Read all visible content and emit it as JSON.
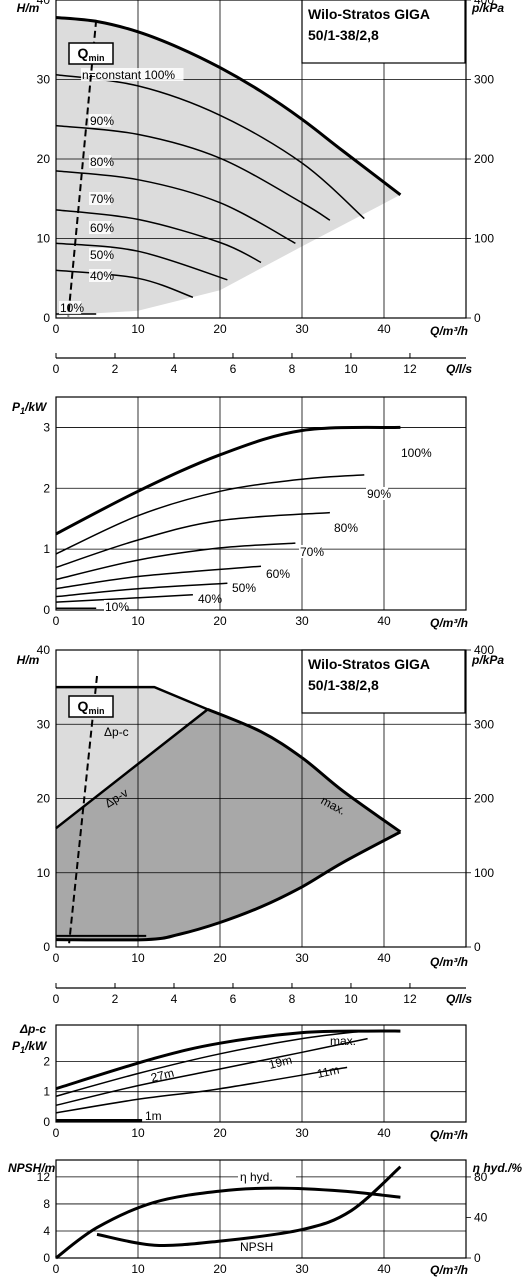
{
  "chart_data": [
    {
      "type": "line",
      "title": "Wilo-Stratos GIGA",
      "subtitle": "50/1-38/2,8",
      "ylabel": "H/m",
      "y2label": "p/kPa",
      "xlabel": "Q/m³/h",
      "x2label": "Q/l/s",
      "xlim": [
        0,
        50
      ],
      "ylim": [
        0,
        40
      ],
      "y2lim": [
        0,
        400
      ],
      "xticks": [
        0,
        10,
        20,
        30,
        40
      ],
      "yticks": [
        0,
        10,
        20,
        30,
        40
      ],
      "y2ticks": [
        0,
        100,
        200,
        300,
        400
      ],
      "x2lim": [
        0,
        13.9
      ],
      "x2ticks": [
        0,
        2,
        4,
        6,
        8,
        10,
        12
      ],
      "qmin_label": "Q",
      "qmin_sub": "min",
      "series": [
        {
          "name": "n=constant 100%",
          "x": [
            0,
            5,
            10,
            15,
            20,
            25,
            30,
            35,
            42
          ],
          "y": [
            37.8,
            37.3,
            36,
            34,
            31.5,
            28.5,
            25,
            21,
            15.5
          ]
        },
        {
          "name": "90%",
          "x": [
            0,
            10,
            20,
            30,
            37.6
          ],
          "y": [
            30.6,
            29.2,
            25.5,
            19.5,
            12.5
          ]
        },
        {
          "name": "80%",
          "x": [
            0,
            10,
            20,
            30,
            33.4
          ],
          "y": [
            24.2,
            23.1,
            20.1,
            14.5,
            12.3
          ]
        },
        {
          "name": "70%",
          "x": [
            0,
            10,
            20,
            29.2
          ],
          "y": [
            18.5,
            17.4,
            14.5,
            9.4
          ]
        },
        {
          "name": "60%",
          "x": [
            0,
            10,
            20,
            25
          ],
          "y": [
            13.6,
            12.4,
            9.5,
            7.0
          ]
        },
        {
          "name": "50%",
          "x": [
            0,
            10,
            20.9
          ],
          "y": [
            9.4,
            8.4,
            4.8
          ]
        },
        {
          "name": "40%",
          "x": [
            0,
            10,
            16.7
          ],
          "y": [
            6.0,
            5.0,
            2.6
          ]
        },
        {
          "name": "10%",
          "x": [
            0,
            4.9
          ],
          "y": [
            0.5,
            0.5
          ]
        }
      ]
    },
    {
      "type": "line",
      "ylabel": "P",
      "ylabel_sub": "1",
      "ylabel_unit": "/kW",
      "xlabel": "Q/m³/h",
      "xlim": [
        0,
        50
      ],
      "ylim": [
        0,
        3.5
      ],
      "xticks": [
        0,
        10,
        20,
        30,
        40
      ],
      "yticks": [
        0,
        1,
        2,
        3
      ],
      "series": [
        {
          "name": "100%",
          "x": [
            0,
            10,
            20,
            30,
            42
          ],
          "y": [
            1.25,
            1.95,
            2.55,
            2.95,
            3.0
          ]
        },
        {
          "name": "90%",
          "x": [
            0,
            10,
            20,
            30,
            37.6
          ],
          "y": [
            0.92,
            1.55,
            1.95,
            2.15,
            2.22
          ]
        },
        {
          "name": "80%",
          "x": [
            0,
            10,
            20,
            33.4
          ],
          "y": [
            0.7,
            1.15,
            1.47,
            1.6
          ]
        },
        {
          "name": "70%",
          "x": [
            0,
            10,
            20,
            29.2
          ],
          "y": [
            0.5,
            0.82,
            1.02,
            1.1
          ]
        },
        {
          "name": "60%",
          "x": [
            0,
            10,
            25
          ],
          "y": [
            0.35,
            0.55,
            0.72
          ]
        },
        {
          "name": "50%",
          "x": [
            0,
            10,
            20.9
          ],
          "y": [
            0.22,
            0.35,
            0.44
          ]
        },
        {
          "name": "40%",
          "x": [
            0,
            10,
            16.7
          ],
          "y": [
            0.13,
            0.2,
            0.25
          ]
        },
        {
          "name": "10%",
          "x": [
            0,
            4.9
          ],
          "y": [
            0.03,
            0.03
          ]
        }
      ]
    },
    {
      "type": "area",
      "title": "Wilo-Stratos GIGA",
      "subtitle": "50/1-38/2,8",
      "ylabel": "H/m",
      "y2label": "p/kPa",
      "xlabel": "Q/m³/h",
      "x2label": "Q/l/s",
      "xlim": [
        0,
        50
      ],
      "ylim": [
        0,
        40
      ],
      "y2lim": [
        0,
        400
      ],
      "xticks": [
        0,
        10,
        20,
        30,
        40
      ],
      "yticks": [
        0,
        10,
        20,
        30,
        40
      ],
      "y2ticks": [
        0,
        100,
        200,
        300,
        400
      ],
      "x2lim": [
        0,
        13.9
      ],
      "x2ticks": [
        0,
        2,
        4,
        6,
        8,
        10,
        12
      ],
      "qmin_label": "Q",
      "qmin_sub": "min",
      "series": [
        {
          "name": "Δp-c",
          "x": [
            0,
            12,
            18.5
          ],
          "y": [
            35,
            35,
            32
          ]
        },
        {
          "name": "Δp-v",
          "x": [
            0,
            18.5
          ],
          "y": [
            16,
            32
          ]
        },
        {
          "name": "max.",
          "x": [
            0,
            12,
            18.5,
            25,
            30,
            35,
            42
          ],
          "y": [
            35,
            35,
            32,
            29,
            25.5,
            21,
            15.5
          ]
        },
        {
          "name": "min",
          "x": [
            0,
            11,
            15,
            20,
            25,
            30,
            35,
            42
          ],
          "y": [
            1,
            1,
            1.7,
            3.3,
            5.4,
            8.1,
            11.4,
            15.5
          ]
        }
      ]
    },
    {
      "type": "line",
      "ylabel": "P",
      "ylabel_sub": "1",
      "ylabel_unit": "/kW",
      "ylabel_top": "Δp-c",
      "xlabel": "Q/m³/h",
      "xlim": [
        0,
        50
      ],
      "ylim": [
        0,
        3.2
      ],
      "xticks": [
        0,
        10,
        20,
        30,
        40
      ],
      "yticks": [
        0,
        1,
        2
      ],
      "series": [
        {
          "name": "max.",
          "x": [
            0,
            12,
            20,
            30,
            38,
            42
          ],
          "y": [
            1.1,
            2.1,
            2.6,
            2.95,
            3.0,
            3.0
          ]
        },
        {
          "name": "27m",
          "x": [
            0,
            10,
            20,
            30,
            37.5
          ],
          "y": [
            0.85,
            1.6,
            2.25,
            2.75,
            3.0
          ]
        },
        {
          "name": "19m",
          "x": [
            0,
            10,
            20,
            30,
            38
          ],
          "y": [
            0.55,
            1.2,
            1.75,
            2.3,
            2.75
          ]
        },
        {
          "name": "11m",
          "x": [
            0,
            10,
            20,
            35.5
          ],
          "y": [
            0.3,
            0.75,
            1.1,
            1.8
          ]
        },
        {
          "name": "1m",
          "x": [
            0,
            10.5
          ],
          "y": [
            0.05,
            0.05
          ]
        }
      ]
    },
    {
      "type": "line",
      "ylabel": "NPSH/m",
      "y2label": "η hyd./%",
      "xlabel": "Q/m³/h",
      "xlim": [
        0,
        50
      ],
      "ylim": [
        0,
        14.5
      ],
      "y2lim": [
        0,
        96.7
      ],
      "xticks": [
        0,
        10,
        20,
        30,
        40
      ],
      "yticks": [
        0,
        4,
        8,
        12
      ],
      "y2ticks": [
        0,
        40,
        80
      ],
      "series": [
        {
          "name": "η hyd.",
          "x": [
            0,
            5,
            12,
            20,
            27,
            35,
            42
          ],
          "y": [
            0,
            30,
            55,
            66,
            69,
            66,
            60
          ]
        },
        {
          "name": "NPSH",
          "x": [
            5,
            12,
            20,
            30,
            36,
            42
          ],
          "y": [
            3.5,
            1.9,
            2.5,
            4.2,
            7.0,
            13.5
          ]
        }
      ]
    }
  ]
}
